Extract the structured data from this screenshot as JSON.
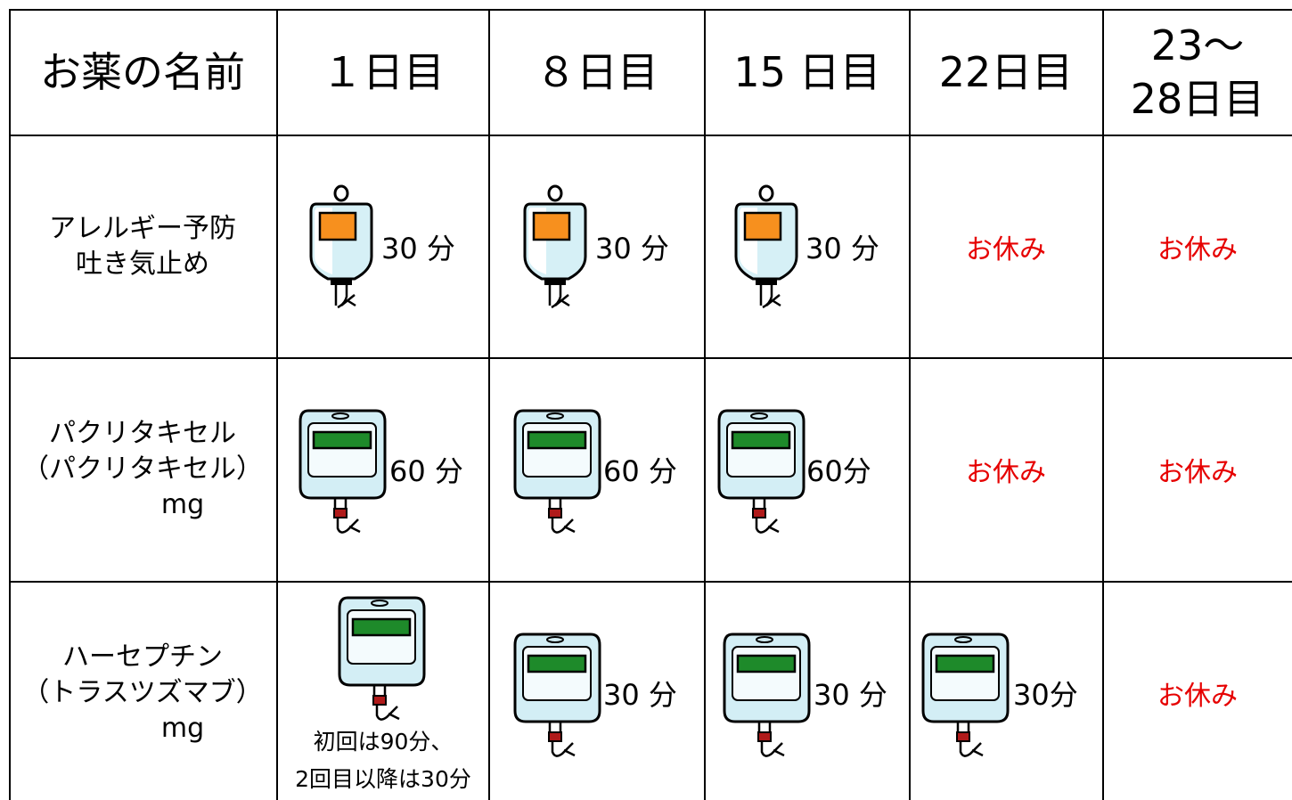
{
  "table": {
    "header": [
      "お薬の名前",
      "１日目",
      "８日目",
      "15 日目",
      "22日目",
      [
        "23〜",
        "28日目"
      ]
    ],
    "rows": [
      {
        "name": [
          "アレルギー予防",
          "吐き気止め"
        ],
        "cells": [
          "30 分",
          "30 分",
          "30 分",
          "お休み",
          "お休み"
        ]
      },
      {
        "name": [
          "パクリタキセル",
          "（パクリタキセル）",
          "mg"
        ],
        "cells": [
          "60 分",
          "60 分",
          "60分",
          "お休み",
          "お休み"
        ]
      },
      {
        "name": [
          "ハーセプチン",
          "（トラスツズマブ）",
          "mg"
        ],
        "cells": [
          [
            "初回は90分、",
            "2回目以降は30分"
          ],
          "30 分",
          "30 分",
          "30分",
          "お休み"
        ]
      }
    ]
  }
}
